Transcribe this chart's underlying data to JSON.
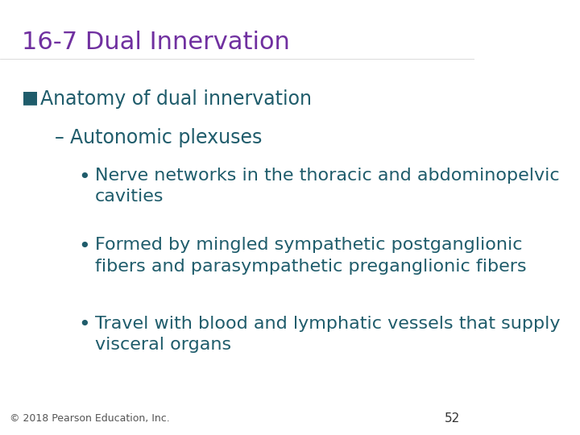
{
  "title": "16-7 Dual Innervation",
  "title_color": "#7030A0",
  "title_fontsize": 22,
  "background_color": "#FFFFFF",
  "bullet1_text": "Anatomy of dual innervation",
  "bullet1_color": "#1F5C6B",
  "bullet1_marker": "■",
  "bullet2_text": "Autonomic plexuses",
  "bullet2_color": "#1F5C6B",
  "bullet3_items": [
    "Nerve networks in the thoracic and abdominopelvic\ncavities",
    "Formed by mingled sympathetic postganglionic\nfibers and parasympathetic preganglionic fibers",
    "Travel with blood and lymphatic vessels that supply\nvisceral organs"
  ],
  "bullet3_color": "#1F5C6B",
  "body_fontsize": 17,
  "footer_text": "© 2018 Pearson Education, Inc.",
  "footer_color": "#555555",
  "footer_fontsize": 9,
  "page_number": "52",
  "page_number_color": "#333333",
  "page_number_fontsize": 11
}
